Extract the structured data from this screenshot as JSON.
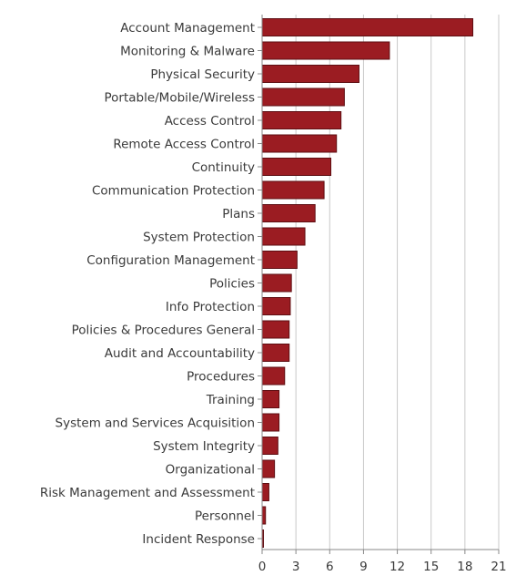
{
  "chart_data": {
    "type": "bar",
    "orientation": "horizontal",
    "title": "",
    "xlabel": "",
    "ylabel": "",
    "categories": [
      "Account Management",
      "Monitoring & Malware",
      "Physical Security",
      "Portable/Mobile/Wireless",
      "Access Control",
      "Remote Access Control",
      "Continuity",
      "Communication Protection",
      "Plans",
      "System Protection",
      "Configuration Management",
      "Policies",
      "Info Protection",
      "Policies & Procedures General",
      "Audit and Accountability",
      "Procedures",
      "Training",
      "System and Services Acquisition",
      "System Integrity",
      "Organizational",
      "Risk Management and Assessment",
      "Personnel",
      "Incident Response"
    ],
    "values": [
      18.7,
      11.3,
      8.6,
      7.3,
      7.0,
      6.6,
      6.1,
      5.5,
      4.7,
      3.8,
      3.1,
      2.6,
      2.5,
      2.4,
      2.4,
      2.0,
      1.5,
      1.5,
      1.4,
      1.1,
      0.6,
      0.3,
      0.1
    ],
    "xlim": [
      0,
      21
    ],
    "xticks": [
      0,
      3,
      6,
      9,
      12,
      15,
      18,
      21
    ],
    "grid": true,
    "legend": "none",
    "colors": {
      "bar_fill": "#9b1c22",
      "bar_stroke": "#5e0e12",
      "grid": "#c8c8c8",
      "axis": "#888888",
      "text": "#3a3a3a"
    }
  }
}
